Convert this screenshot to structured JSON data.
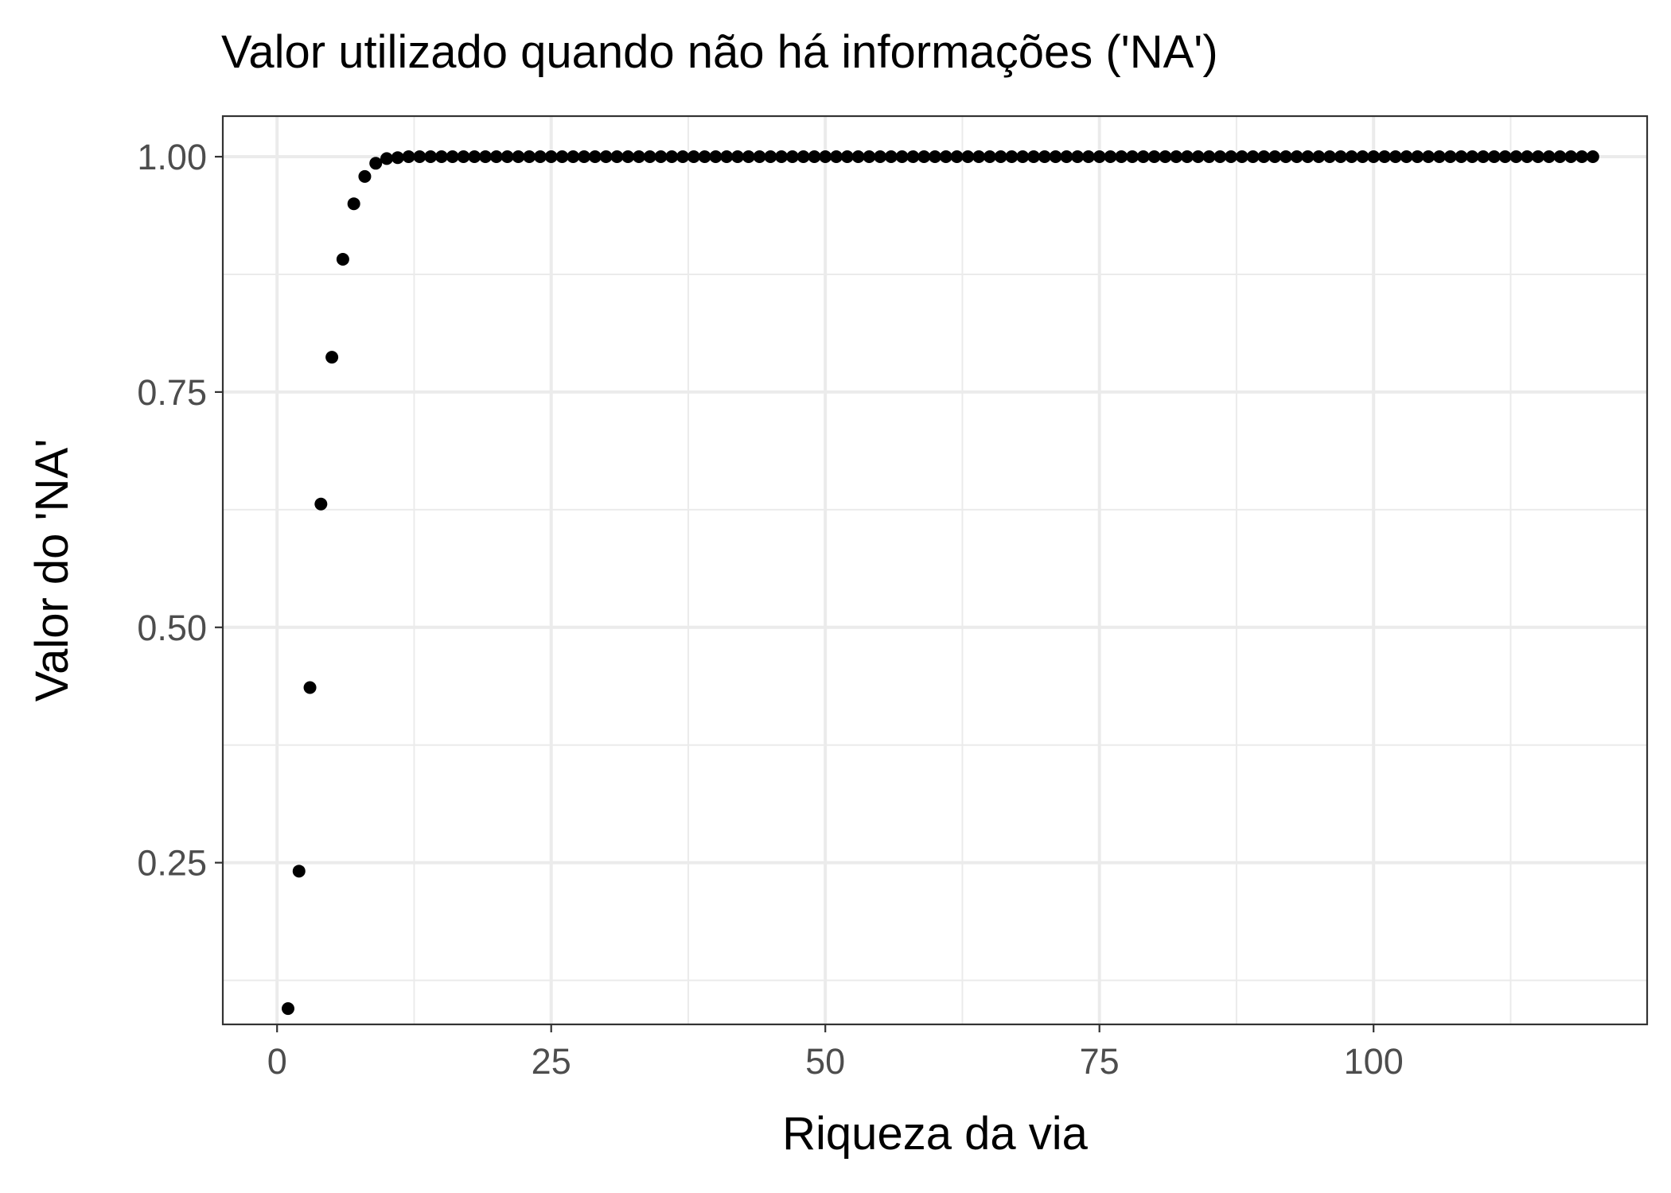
{
  "chart_data": {
    "type": "scatter",
    "title": "Valor utilizado quando não há informações ('NA')",
    "xlabel": "Riqueza da via",
    "ylabel": "Valor do 'NA'",
    "xlim": [
      -4.95,
      124.95
    ],
    "ylim": [
      0.0782,
      1.0431
    ],
    "x_ticks": [
      0,
      25,
      50,
      75,
      100
    ],
    "x_tick_labels": [
      "0",
      "25",
      "50",
      "75",
      "100"
    ],
    "y_ticks": [
      0.25,
      0.5,
      0.75,
      1.0
    ],
    "y_tick_labels": [
      "0.25",
      "0.50",
      "0.75",
      "1.00"
    ],
    "x_minor_ticks": [
      12.5,
      37.5,
      62.5,
      87.5,
      112.5
    ],
    "y_minor_ticks": [
      0.125,
      0.375,
      0.625,
      0.875
    ],
    "grid": true,
    "legend": "none",
    "theme": "bw",
    "point_color": "#000000",
    "series": [
      {
        "x": [
          1,
          2,
          3,
          4,
          5,
          6,
          7,
          8,
          9,
          10,
          11,
          12,
          13,
          14,
          15,
          16,
          17,
          18,
          19,
          20,
          21,
          22,
          23,
          24,
          25,
          26,
          27,
          28,
          29,
          30,
          31,
          32,
          33,
          34,
          35,
          36,
          37,
          38,
          39,
          40,
          41,
          42,
          43,
          44,
          45,
          46,
          47,
          48,
          49,
          50,
          51,
          52,
          53,
          54,
          55,
          56,
          57,
          58,
          59,
          60,
          61,
          62,
          63,
          64,
          65,
          66,
          67,
          68,
          69,
          70,
          71,
          72,
          73,
          74,
          75,
          76,
          77,
          78,
          79,
          80,
          81,
          82,
          83,
          84,
          85,
          86,
          87,
          88,
          89,
          90,
          91,
          92,
          93,
          94,
          95,
          96,
          97,
          98,
          99,
          100,
          101,
          102,
          103,
          104,
          105,
          106,
          107,
          108,
          109,
          110,
          111,
          112,
          113,
          114,
          115,
          116,
          117,
          118,
          119,
          120
        ],
        "y": [
          0.095,
          0.241,
          0.436,
          0.631,
          0.787,
          0.891,
          0.95,
          0.979,
          0.993,
          0.998,
          0.999,
          1,
          1,
          1,
          1,
          1,
          1,
          1,
          1,
          1,
          1,
          1,
          1,
          1,
          1,
          1,
          1,
          1,
          1,
          1,
          1,
          1,
          1,
          1,
          1,
          1,
          1,
          1,
          1,
          1,
          1,
          1,
          1,
          1,
          1,
          1,
          1,
          1,
          1,
          1,
          1,
          1,
          1,
          1,
          1,
          1,
          1,
          1,
          1,
          1,
          1,
          1,
          1,
          1,
          1,
          1,
          1,
          1,
          1,
          1,
          1,
          1,
          1,
          1,
          1,
          1,
          1,
          1,
          1,
          1,
          1,
          1,
          1,
          1,
          1,
          1,
          1,
          1,
          1,
          1,
          1,
          1,
          1,
          1,
          1,
          1,
          1,
          1,
          1,
          1,
          1,
          1,
          1,
          1,
          1,
          1,
          1,
          1,
          1,
          1,
          1,
          1,
          1,
          1,
          1,
          1,
          1,
          1,
          1,
          1
        ]
      }
    ]
  }
}
